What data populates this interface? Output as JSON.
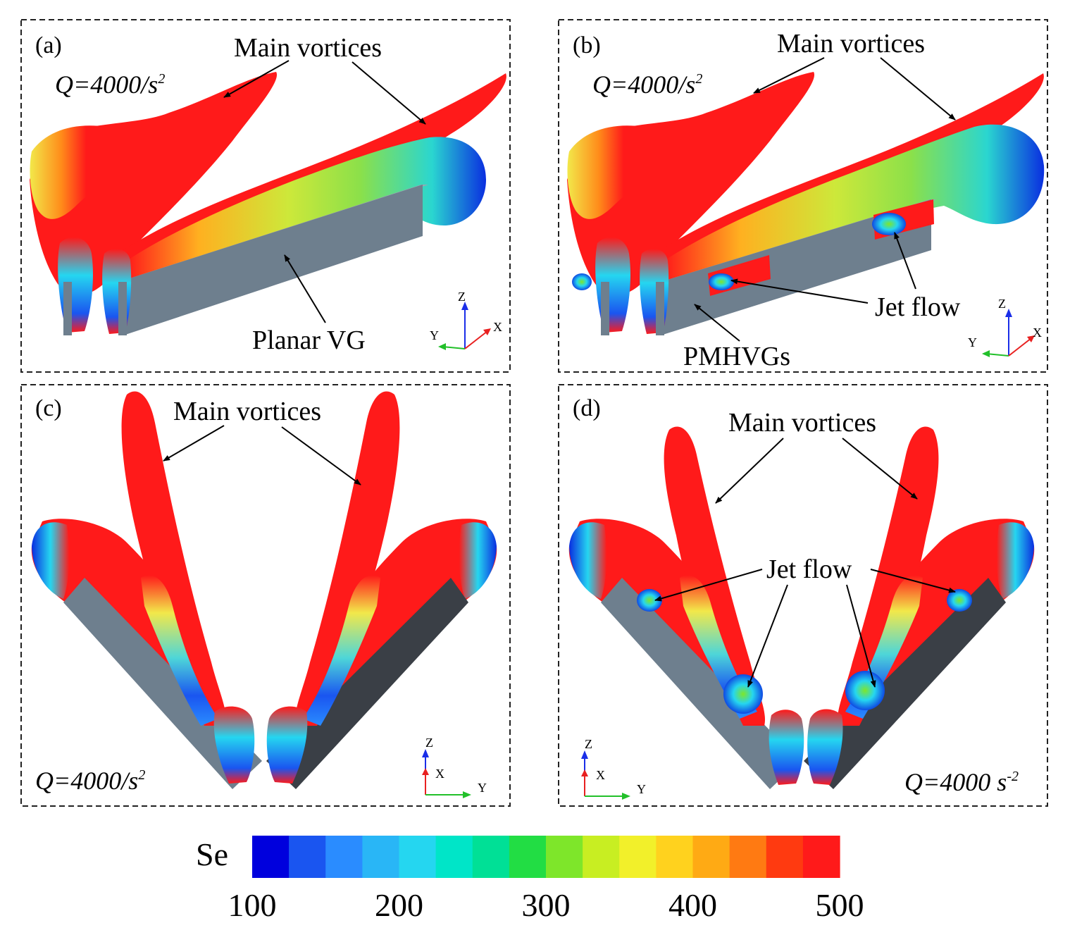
{
  "panels": [
    {
      "id": "a",
      "label": "(a)",
      "q_text": "Q=4000/s",
      "q_sup": "2",
      "callouts": [
        "Main vortices",
        "Planar VG"
      ],
      "axes": [
        "Z",
        "Y",
        "X"
      ]
    },
    {
      "id": "b",
      "label": "(b)",
      "q_text": "Q=4000/s",
      "q_sup": "2",
      "callouts": [
        "Main vortices",
        "Jet flow",
        "PMHVGs"
      ],
      "axes": [
        "Z",
        "Y",
        "X"
      ]
    },
    {
      "id": "c",
      "label": "(c)",
      "q_text": "Q=4000/s",
      "q_sup": "2",
      "callouts": [
        "Main vortices"
      ],
      "axes": [
        "Z",
        "X",
        "Y"
      ]
    },
    {
      "id": "d",
      "label": "(d)",
      "q_text": "Q=4000 s",
      "q_sup": "-2",
      "callouts": [
        "Main vortices",
        "Jet flow"
      ],
      "axes": [
        "Z",
        "X",
        "Y"
      ]
    }
  ],
  "colorbar": {
    "title": "Se",
    "ticks": [
      "100",
      "200",
      "300",
      "400",
      "500"
    ],
    "min": 100,
    "max": 500,
    "colors": [
      "#0000dd",
      "#1a55f0",
      "#2a8cff",
      "#29b6f6",
      "#25d6f0",
      "#00e5c8",
      "#00e096",
      "#22dd44",
      "#7ee62a",
      "#c8ee22",
      "#f2f02a",
      "#ffd21e",
      "#ffaa14",
      "#ff7a12",
      "#ff3a10",
      "#ff1a1a"
    ]
  },
  "colors": {
    "vortex_red": "#ff1a1a",
    "vg_gray": "#6e7f8e",
    "vg_dark": "#3a3f46",
    "axis_z": "#1a2ee8",
    "axis_x": "#e82020",
    "axis_y": "#22c02a"
  }
}
